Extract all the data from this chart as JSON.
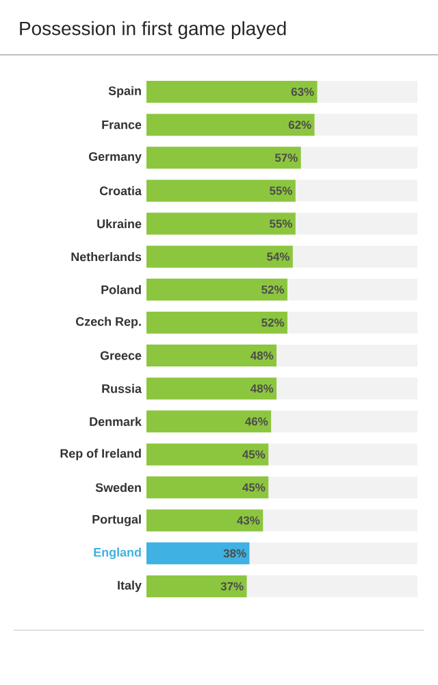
{
  "chart_data": {
    "type": "bar",
    "orientation": "horizontal",
    "title": "Possession in first game played",
    "categories": [
      "Spain",
      "France",
      "Germany",
      "Croatia",
      "Ukraine",
      "Netherlands",
      "Poland",
      "Czech Rep.",
      "Greece",
      "Russia",
      "Denmark",
      "Rep of Ireland",
      "Sweden",
      "Portugal",
      "England",
      "Italy"
    ],
    "values": [
      63,
      62,
      57,
      55,
      55,
      54,
      52,
      52,
      48,
      48,
      46,
      45,
      45,
      43,
      38,
      37
    ],
    "value_labels": [
      "63%",
      "62%",
      "57%",
      "55%",
      "55%",
      "54%",
      "52%",
      "52%",
      "48%",
      "48%",
      "46%",
      "45%",
      "45%",
      "43%",
      "38%",
      "37%"
    ],
    "color": "#8cc63e",
    "colors": [
      "#8cc63e",
      "#8cc63e",
      "#8cc63e",
      "#8cc63e",
      "#8cc63e",
      "#8cc63e",
      "#8cc63e",
      "#8cc63e",
      "#8cc63e",
      "#8cc63e",
      "#8cc63e",
      "#8cc63e",
      "#8cc63e",
      "#8cc63e",
      "#3fb1e3",
      "#8cc63e"
    ],
    "xlim": [
      0,
      100
    ],
    "tick_labels": "y"
  }
}
